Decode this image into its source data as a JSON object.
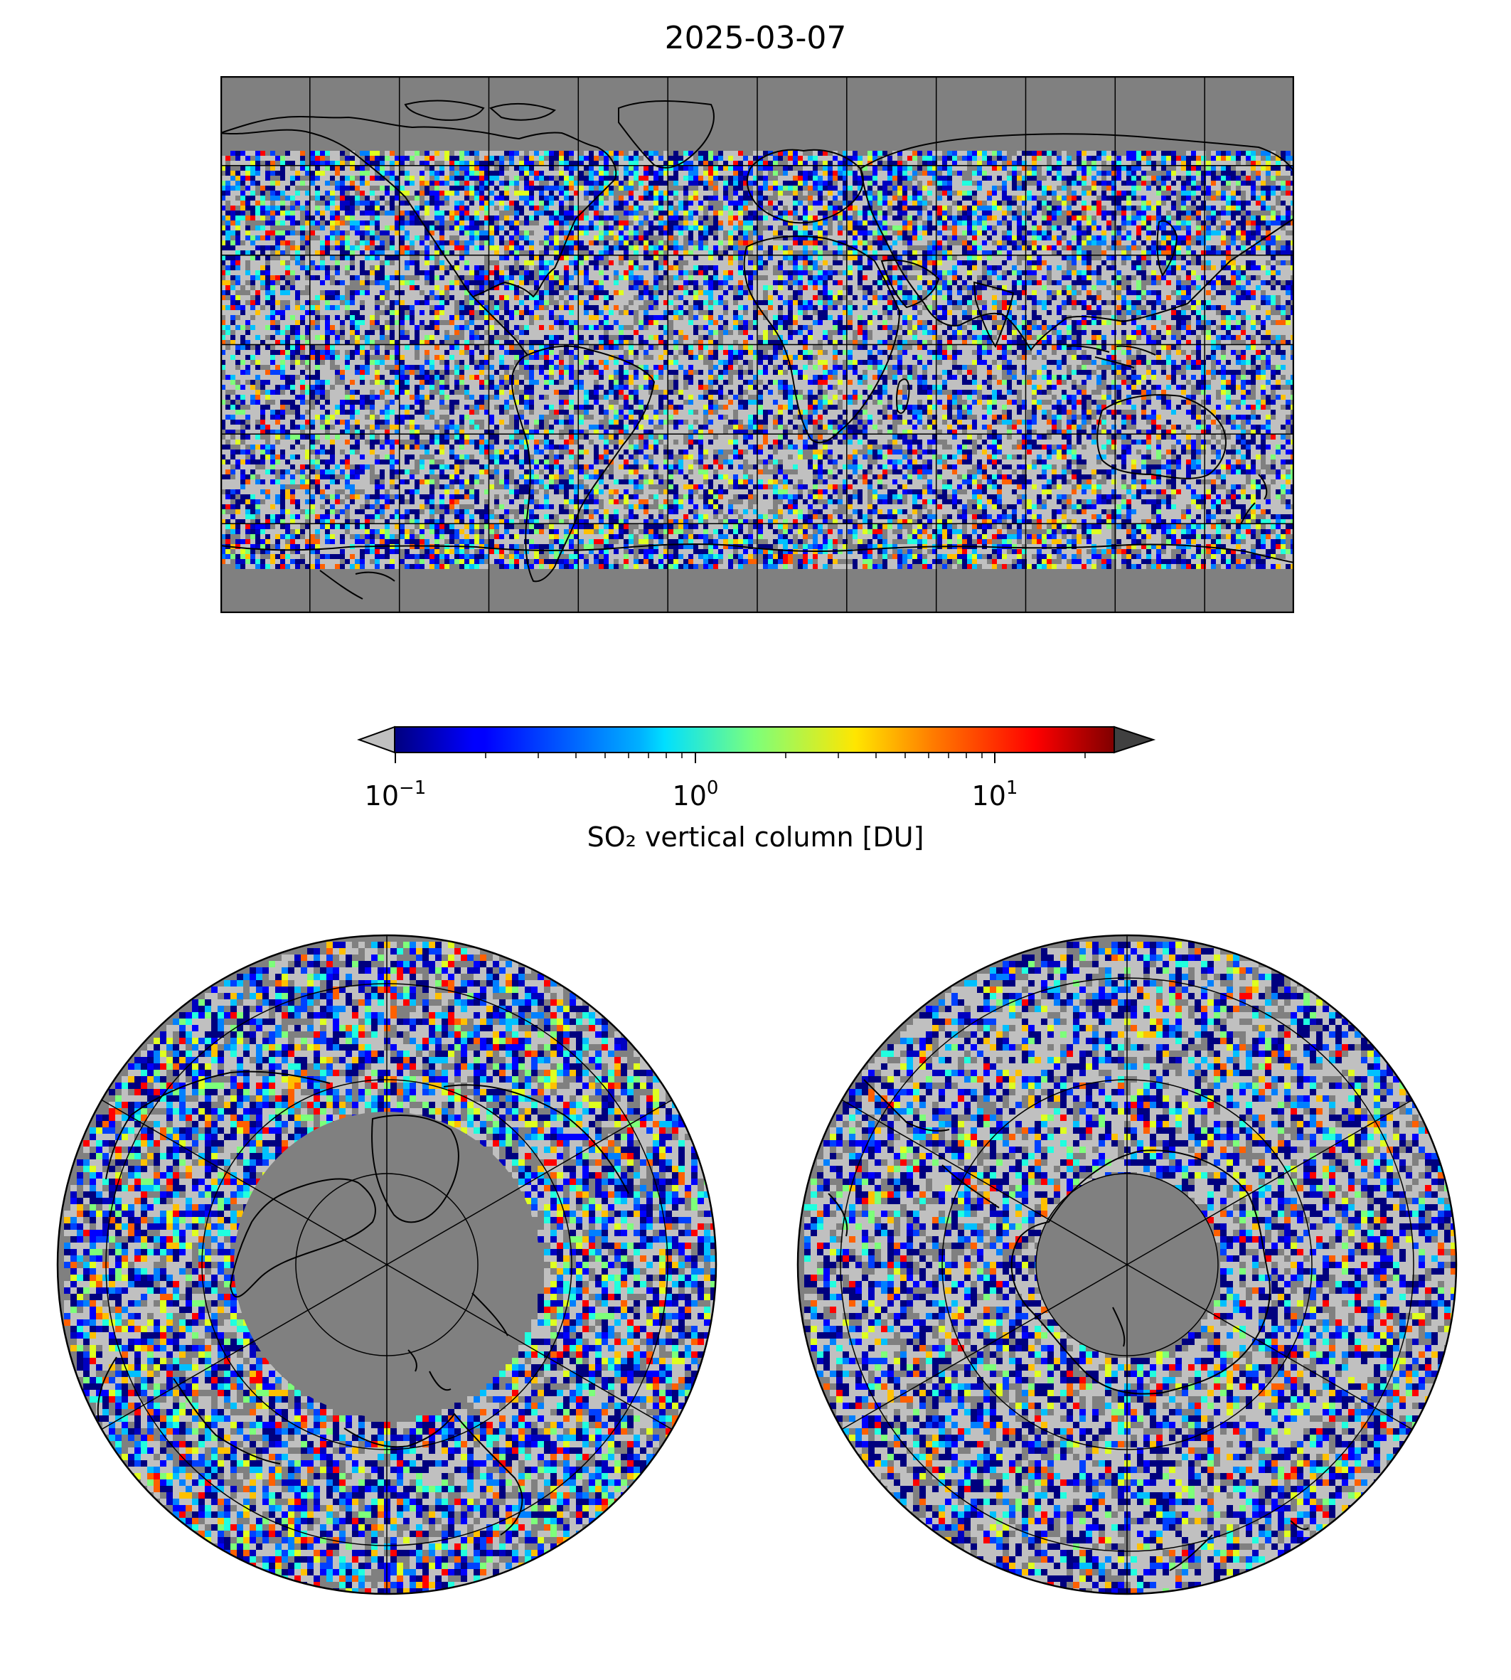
{
  "title": "2025-03-07",
  "colorbar": {
    "label": "SO₂ vertical column [DU]",
    "scale": "log",
    "range": [
      0.1,
      25
    ],
    "colormap": "jet",
    "under_color": "#c0c0c0",
    "over_color": "#404040",
    "ticks": [
      {
        "value": 0.1,
        "base": "10",
        "exp": "−1"
      },
      {
        "value": 1,
        "base": "10",
        "exp": "0"
      },
      {
        "value": 10,
        "base": "10",
        "exp": "1"
      }
    ]
  },
  "colors": {
    "no_data": "#808080",
    "below_range": "#c0c0c0",
    "coastline": "#000000",
    "grid": "#000000"
  },
  "maps": [
    {
      "name": "global",
      "projection": "plate-carree",
      "lon_range": [
        -180,
        180
      ],
      "lat_range": [
        -90,
        90
      ],
      "grid_lon_step": 30,
      "grid_lat_step": 30
    },
    {
      "name": "north-polar",
      "projection": "north-polar-stereographic",
      "lat_rings": [
        80,
        60,
        40,
        20
      ],
      "meridian_step": 60
    },
    {
      "name": "south-polar",
      "projection": "south-polar-stereographic",
      "lat_rings": [
        -60,
        -40,
        -20,
        0
      ],
      "meridian_step": 60
    }
  ]
}
